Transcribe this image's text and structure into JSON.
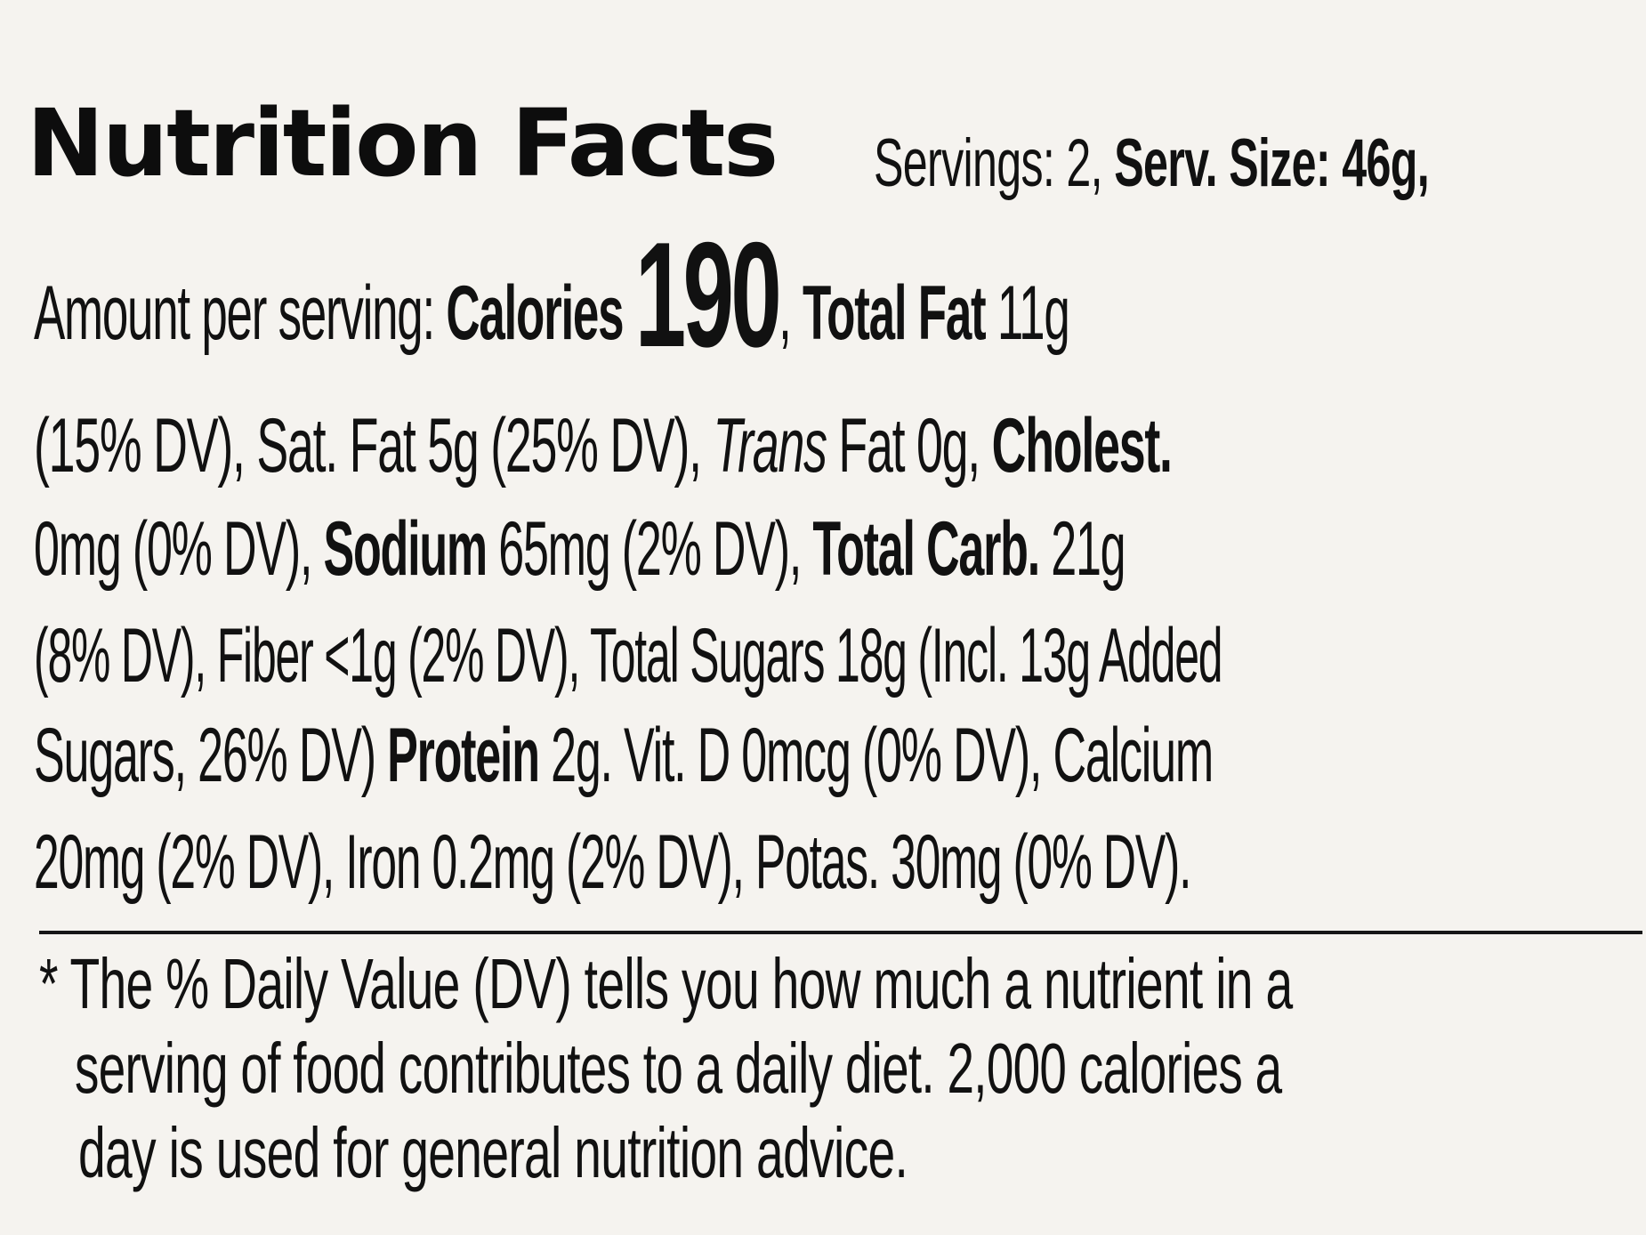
{
  "label": {
    "title": "Nutrition Facts",
    "servings_text": "Servings: 2,",
    "serving_size_text": "Serv. Size: 46g,",
    "amount_per_serving": "Amount per serving:",
    "calories_label": "Calories",
    "calories_value": "190",
    "after_calories": ",",
    "total_fat_label": "Total Fat",
    "total_fat_value": "11g",
    "line2_start": "(15% DV), Sat. Fat 5g (25% DV),",
    "trans_label": "Trans",
    "trans_rest": "Fat 0g,",
    "cholest_label": "Cholest.",
    "line3_start": "0mg (0% DV),",
    "sodium_label": "Sodium",
    "sodium_rest": "65mg (2% DV),",
    "carb_label": "Total Carb.",
    "carb_value": "21g",
    "line4": "(8% DV), Fiber <1g (2% DV), Total Sugars 18g (Incl. 13g Added",
    "line5_start": "Sugars, 26% DV)",
    "protein_label": "Protein",
    "line5_rest": "2g. Vit. D 0mcg (0% DV), Calcium",
    "line6": "20mg (2% DV), Iron 0.2mg (2% DV), Potas. 30mg (0% DV).",
    "footnote": [
      "* The % Daily Value (DV) tells you how much a nutrient in a",
      "serving of food contributes to a daily diet. 2,000 calories a",
      "day is used for general nutrition advice."
    ]
  }
}
